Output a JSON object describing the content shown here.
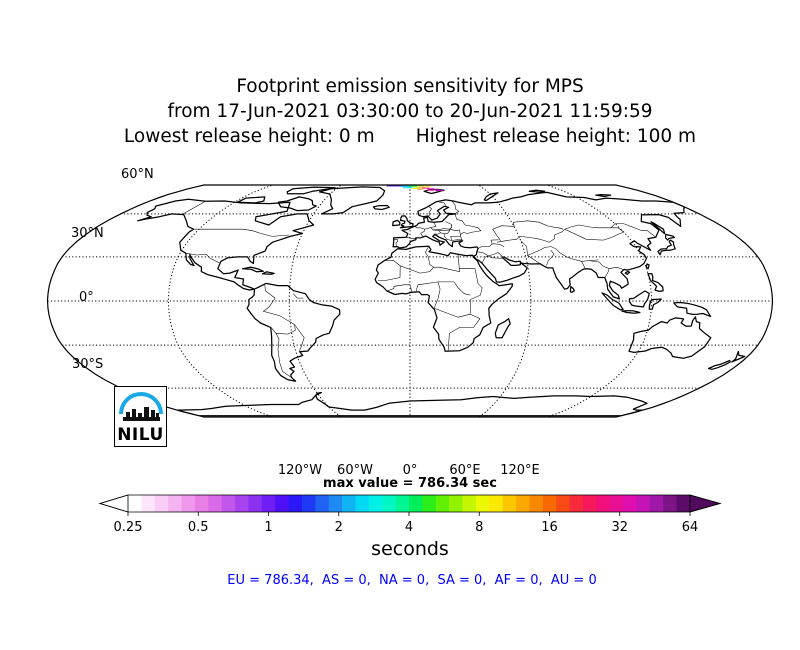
{
  "title": {
    "line1": "Footprint emission sensitivity for MPS",
    "line2": "from 17-Jun-2021 03:30:00 to 20-Jun-2021 11:59:59",
    "line3_left": "Lowest release height: 0 m",
    "line3_right": "Highest release height: 100 m"
  },
  "map": {
    "projection": "robinson",
    "lat_labels": [
      "60°N",
      "30°N",
      "0°",
      "30°S"
    ],
    "lon_labels": [
      "120°W",
      "60°W",
      "0°",
      "60°E",
      "120°E"
    ],
    "gridlines": true
  },
  "max_value": "max value = 786.34 sec",
  "colorbar": {
    "ticks": [
      "0.25",
      "0.5",
      "1",
      "2",
      "4",
      "8",
      "16",
      "32",
      "64"
    ],
    "label": "seconds",
    "colors": [
      "#ffffff",
      "#fde6fb",
      "#f9cdf6",
      "#f4b3f1",
      "#ef99ec",
      "#e97fe6",
      "#d96ae8",
      "#c256ea",
      "#a843ef",
      "#8c31f2",
      "#6f1ff6",
      "#4d10f8",
      "#2a18f8",
      "#1f3af6",
      "#1f62f4",
      "#1f8af2",
      "#10b4f2",
      "#00d8f4",
      "#00f0e8",
      "#00f7c4",
      "#00f593",
      "#00ee5a",
      "#2aee1a",
      "#60f000",
      "#92f300",
      "#c4f600",
      "#ecf800",
      "#fbe800",
      "#fbc800",
      "#fba800",
      "#f98800",
      "#f76a00",
      "#f84a14",
      "#f82a3c",
      "#f8185c",
      "#f2107c",
      "#ea1096",
      "#e010b0",
      "#c414b8",
      "#a018a8",
      "#7c1488",
      "#5a0c66"
    ]
  },
  "region_summary": "EU = 786.34,  AS = 0,  NA = 0,  SA = 0,  AF = 0,  AU = 0",
  "logo": {
    "text": "NILU"
  }
}
